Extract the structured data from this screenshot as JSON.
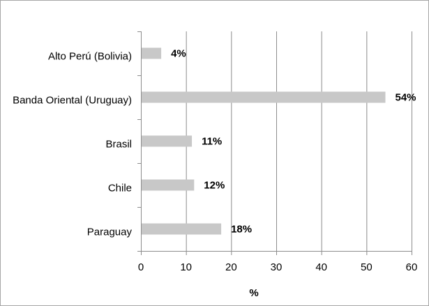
{
  "chart_data": {
    "type": "bar",
    "orientation": "horizontal",
    "categories": [
      "Alto Perú (Bolivia)",
      "Banda Oriental (Uruguay)",
      "Brasil",
      "Chile",
      "Paraguay"
    ],
    "values": [
      4.5,
      54.2,
      11.3,
      11.8,
      17.8
    ],
    "data_labels": [
      "4%",
      "54%",
      "11%",
      "12%",
      "18%"
    ],
    "xlabel": "%",
    "ylabel": "",
    "xlim": [
      0,
      60
    ],
    "xticks": [
      0,
      10,
      20,
      30,
      40,
      50,
      60
    ],
    "grid": "vertical",
    "legend": "none",
    "colors": {
      "bar": "#c8c8c8",
      "grid": "#8c8c8c",
      "axis": "#8c8c8c",
      "frame": "#a6a6a6"
    }
  }
}
